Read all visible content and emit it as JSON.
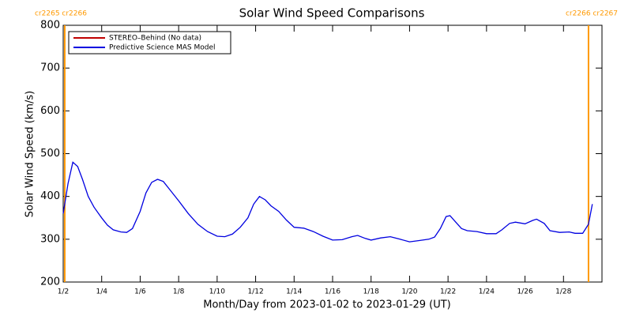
{
  "chart_data": {
    "type": "line",
    "title": "Solar Wind Speed Comparisons",
    "x_label": "Month/Day from 2023-01-02 to 2023-01-29 (UT)",
    "y_label": "Solar Wind Speed (km/s)",
    "xlim": [
      2,
      30
    ],
    "ylim": [
      200,
      800
    ],
    "xticks": [
      {
        "value": 2,
        "label": "1/2"
      },
      {
        "value": 4,
        "label": "1/4"
      },
      {
        "value": 6,
        "label": "1/6"
      },
      {
        "value": 8,
        "label": "1/8"
      },
      {
        "value": 10,
        "label": "1/10"
      },
      {
        "value": 12,
        "label": "1/12"
      },
      {
        "value": 14,
        "label": "1/14"
      },
      {
        "value": 16,
        "label": "1/16"
      },
      {
        "value": 18,
        "label": "1/18"
      },
      {
        "value": 20,
        "label": "1/20"
      },
      {
        "value": 22,
        "label": "1/22"
      },
      {
        "value": 24,
        "label": "1/24"
      },
      {
        "value": 26,
        "label": "1/26"
      },
      {
        "value": 28,
        "label": "1/28"
      }
    ],
    "yticks": [
      200,
      300,
      400,
      500,
      600,
      700,
      800
    ],
    "x": [
      2.0,
      2.25,
      2.5,
      2.75,
      3.0,
      3.3,
      3.6,
      4.0,
      4.3,
      4.6,
      5.0,
      5.3,
      5.6,
      6.0,
      6.3,
      6.6,
      6.9,
      7.2,
      7.5,
      8.0,
      8.5,
      9.0,
      9.5,
      10.0,
      10.4,
      10.8,
      11.2,
      11.6,
      11.9,
      12.2,
      12.5,
      12.8,
      13.2,
      13.6,
      14.0,
      14.5,
      15.0,
      15.5,
      16.0,
      16.5,
      17.0,
      17.3,
      17.7,
      18.0,
      18.5,
      19.0,
      19.5,
      20.0,
      20.5,
      21.0,
      21.3,
      21.6,
      21.9,
      22.1,
      22.4,
      22.7,
      23.0,
      23.5,
      24.0,
      24.5,
      24.8,
      25.2,
      25.5,
      26.0,
      26.4,
      26.6,
      27.0,
      27.3,
      27.8,
      28.3,
      28.6,
      29.0,
      29.3,
      29.5
    ],
    "series": [
      {
        "name": "STEREO–Behind (No data)",
        "color": "#c00000",
        "values": [
          null,
          null,
          null,
          null,
          null,
          null,
          null,
          null,
          null,
          null,
          null,
          null,
          null,
          null,
          null,
          null,
          null,
          null,
          null,
          null,
          null,
          null,
          null,
          null,
          null,
          null,
          null,
          null,
          null,
          null,
          null,
          null,
          null,
          null,
          null,
          null,
          null,
          null,
          null,
          null,
          null,
          null,
          null,
          null,
          null,
          null,
          null,
          null,
          null,
          null,
          null,
          null,
          null,
          null,
          null,
          null,
          null,
          null,
          null,
          null,
          null,
          null,
          null,
          null,
          null,
          null,
          null,
          null,
          null,
          null,
          null,
          null,
          null,
          null
        ]
      },
      {
        "name": "Predictive Science MAS Model",
        "color": "#0000e0",
        "values": [
          360,
          430,
          480,
          470,
          440,
          400,
          375,
          350,
          333,
          322,
          317,
          316,
          325,
          365,
          408,
          433,
          440,
          435,
          418,
          390,
          360,
          335,
          318,
          307,
          306,
          312,
          328,
          350,
          382,
          400,
          392,
          378,
          365,
          345,
          328,
          326,
          318,
          307,
          298,
          299,
          306,
          309,
          302,
          298,
          303,
          306,
          300,
          294,
          297,
          300,
          305,
          325,
          353,
          355,
          340,
          325,
          320,
          318,
          313,
          313,
          322,
          337,
          340,
          336,
          344,
          347,
          337,
          320,
          316,
          317,
          314,
          314,
          335,
          382
        ]
      }
    ],
    "legend": "upper left",
    "markers": [
      {
        "x": 2.08,
        "label": "cr2265 cr2266",
        "color": "#ff9900"
      },
      {
        "x": 29.3,
        "label": "cr2266 cr2267",
        "color": "#ff9900"
      }
    ]
  }
}
